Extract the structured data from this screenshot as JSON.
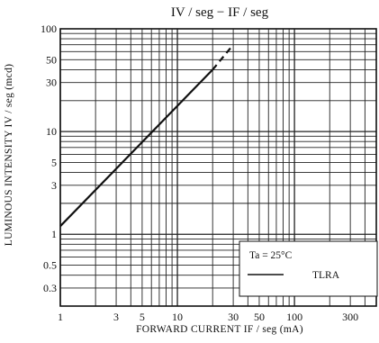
{
  "chart_data": {
    "type": "line",
    "title": "IV / seg  −  IF / seg",
    "xlabel": "FORWARD CURRENT   IF / seg   (mA)",
    "ylabel": "LUMINOUS INTENSITY   IV / seg   (mcd)",
    "x_scale": "log",
    "y_scale": "log",
    "xlim": [
      1,
      500
    ],
    "ylim": [
      0.2,
      100
    ],
    "x_ticks": [
      1,
      3,
      5,
      10,
      30,
      50,
      100,
      300
    ],
    "x_tick_labels": [
      "1",
      "3",
      "5",
      "10",
      "30",
      "50",
      "100",
      "300"
    ],
    "y_ticks": [
      0.3,
      0.5,
      1,
      3,
      5,
      10,
      30,
      50,
      100
    ],
    "y_tick_labels": [
      "0.3",
      "0.5",
      "1",
      "3",
      "5",
      "10",
      "30",
      "50",
      "100"
    ],
    "grid": true,
    "series": [
      {
        "name": "TLRA",
        "segments": [
          {
            "style": "solid",
            "x": [
              1,
              20
            ],
            "y": [
              1.2,
              40
            ]
          },
          {
            "style": "dashed",
            "x": [
              20,
              30
            ],
            "y": [
              40,
              70
            ]
          }
        ]
      }
    ],
    "legend": {
      "placement": "bottom-right",
      "condition": "Ta = 25°C",
      "entries": [
        "TLRA"
      ]
    }
  }
}
